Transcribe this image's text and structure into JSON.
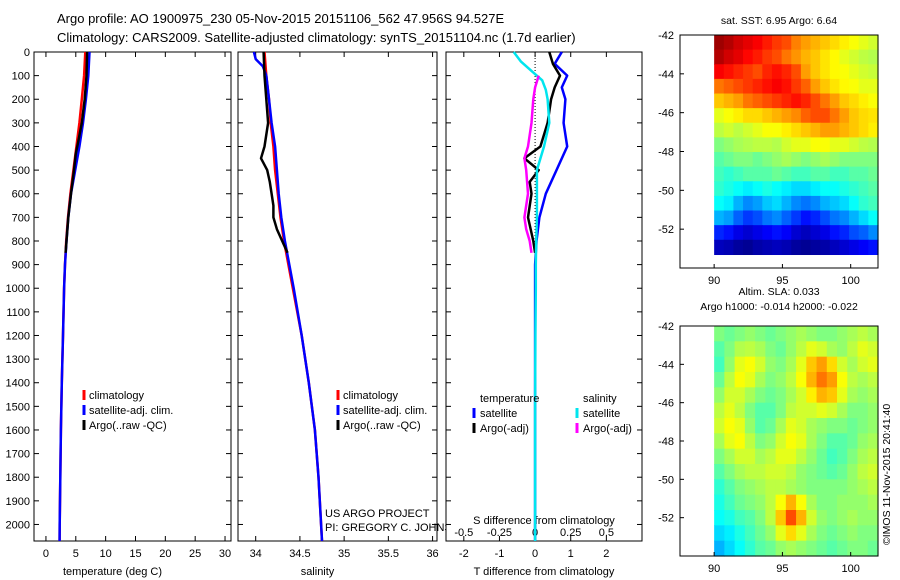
{
  "title": {
    "line1": "Argo profile: AO 1900975_230 05-Nov-2015 20151106_562 47.956S 94.527E",
    "line2": "Climatology: CARS2009. Satellite-adjusted climatology: synTS_20151104.nc (1.7d earlier)"
  },
  "side_label": "©IMOS 11-Nov-2015 20:41:40",
  "chart_data": [
    {
      "id": "temperature",
      "type": "line",
      "xlabel": "temperature (deg C)",
      "ylabel": "",
      "xlim": [
        -2,
        31
      ],
      "ylim": [
        2070,
        0
      ],
      "x_ticks": [
        0,
        5,
        10,
        15,
        20,
        25,
        30
      ],
      "x_tick_labels": [
        "0",
        "5",
        "10",
        "15",
        "20",
        "25",
        "30"
      ],
      "y_ticks": [
        0,
        100,
        200,
        300,
        400,
        500,
        600,
        700,
        800,
        900,
        1000,
        1100,
        1200,
        1300,
        1400,
        1500,
        1600,
        1700,
        1800,
        1900,
        2000
      ],
      "y_tick_labels": [
        "0",
        "100",
        "200",
        "300",
        "400",
        "500",
        "600",
        "700",
        "800",
        "900",
        "1000",
        "1100",
        "1200",
        "1300",
        "1400",
        "1500",
        "1600",
        "1700",
        "1800",
        "1900",
        "2000"
      ],
      "legend": [
        "climatology",
        "satellite-adj. clim.",
        "Argo(..raw -QC)"
      ],
      "series": [
        {
          "name": "climatology",
          "color": "#ff0000",
          "y": [
            0,
            100,
            200,
            300,
            400,
            500,
            600,
            700,
            800,
            900,
            1000,
            1200,
            1400,
            1600,
            1800,
            2000,
            2070
          ],
          "x": [
            6.6,
            6.4,
            6.0,
            5.6,
            5.1,
            4.6,
            4.1,
            3.7,
            3.4,
            3.2,
            3.05,
            2.85,
            2.65,
            2.5,
            2.4,
            2.3,
            2.28
          ]
        },
        {
          "name": "satellite-adj. clim.",
          "color": "#0000ff",
          "y": [
            0,
            100,
            200,
            300,
            400,
            500,
            600,
            700,
            800,
            900,
            1000,
            1200,
            1400,
            1600,
            1800,
            2000,
            2070
          ],
          "x": [
            7.3,
            7.1,
            6.7,
            6.2,
            5.6,
            4.9,
            4.2,
            3.75,
            3.45,
            3.2,
            3.05,
            2.85,
            2.65,
            2.5,
            2.4,
            2.3,
            2.28
          ]
        },
        {
          "name": "Argo(..raw -QC)",
          "color": "#000000",
          "y": [
            0,
            100,
            200,
            300,
            380,
            430,
            500,
            600,
            700,
            800,
            850
          ],
          "x": [
            6.9,
            6.8,
            6.5,
            6.0,
            5.4,
            5.0,
            4.7,
            4.2,
            3.75,
            3.45,
            3.3
          ]
        }
      ]
    },
    {
      "id": "salinity",
      "type": "line",
      "xlabel": "salinity",
      "ylabel": "",
      "xlim": [
        33.8,
        36.05
      ],
      "ylim": [
        2070,
        0
      ],
      "x_ticks": [
        34,
        34.5,
        35,
        35.5,
        36
      ],
      "x_tick_labels": [
        "34",
        "34.5",
        "35",
        "35.5",
        "36"
      ],
      "legend": [
        "climatology",
        "satellite-adj. clim.",
        "Argo(..raw -QC)"
      ],
      "annotation": [
        "US ARGO PROJECT",
        "PI: GREGORY C. JOHNSON"
      ],
      "series": [
        {
          "name": "climatology",
          "color": "#ff0000",
          "y": [
            0,
            100,
            200,
            300,
            400,
            500,
            600,
            700,
            800,
            900,
            1000,
            1200,
            1400,
            1600,
            1800,
            2000,
            2070
          ],
          "x": [
            34.1,
            34.12,
            34.15,
            34.17,
            34.2,
            34.22,
            34.25,
            34.28,
            34.32,
            34.37,
            34.42,
            34.52,
            34.6,
            34.67,
            34.71,
            34.74,
            34.75
          ]
        },
        {
          "name": "satellite-adj. clim.",
          "color": "#0000ff",
          "y": [
            0,
            30,
            60,
            100,
            200,
            300,
            400,
            500,
            600,
            700,
            800,
            900,
            1000,
            1200,
            1400,
            1600,
            1800,
            2000,
            2070
          ],
          "x": [
            33.98,
            34.0,
            34.08,
            34.12,
            34.15,
            34.18,
            34.22,
            34.24,
            34.26,
            34.29,
            34.33,
            34.38,
            34.43,
            34.52,
            34.6,
            34.67,
            34.71,
            34.74,
            34.75
          ]
        },
        {
          "name": "Argo(..raw -QC)",
          "color": "#000000",
          "y": [
            0,
            100,
            200,
            300,
            400,
            450,
            500,
            550,
            600,
            650,
            700,
            750,
            800,
            850
          ],
          "x": [
            34.09,
            34.1,
            34.12,
            34.14,
            34.1,
            34.06,
            34.13,
            34.16,
            34.18,
            34.2,
            34.2,
            34.24,
            34.3,
            34.36
          ]
        }
      ]
    },
    {
      "id": "difference",
      "type": "line",
      "xlabel": "T difference from climatology",
      "xlabel_top": "S difference from climatology",
      "ylabel": "",
      "xlim": [
        -2.5,
        3.0
      ],
      "ylim": [
        2070,
        0
      ],
      "x_ticks": [
        -2,
        -1,
        0,
        1,
        2
      ],
      "x_tick_labels": [
        "-2",
        "-1",
        "0",
        "1",
        "2"
      ],
      "x2_tick_labels": [
        "-0.5",
        "-0.25",
        "0",
        "0.25",
        "0.5"
      ],
      "legend_headers": [
        "temperature",
        "salinity"
      ],
      "legend": [
        "satellite",
        "Argo(-adj)",
        "satellite",
        "Argo(-adj)"
      ],
      "series": [
        {
          "name": "temperature satellite",
          "color": "#0000ff",
          "y": [
            0,
            50,
            100,
            150,
            200,
            300,
            400,
            500,
            600,
            700,
            800,
            900,
            1000,
            2070
          ],
          "x": [
            0.75,
            0.55,
            0.9,
            0.75,
            0.85,
            0.8,
            0.9,
            0.6,
            0.3,
            0.12,
            0.04,
            0.0,
            0.0,
            0.0
          ]
        },
        {
          "name": "temperature Argo(-adj)",
          "color": "#000000",
          "y": [
            0,
            50,
            100,
            150,
            200,
            300,
            400,
            450,
            500,
            550,
            600,
            700,
            800,
            850
          ],
          "x": [
            0.4,
            0.5,
            0.7,
            0.55,
            0.45,
            0.35,
            0.15,
            -0.3,
            0.1,
            -0.15,
            -0.1,
            -0.2,
            -0.05,
            0.0
          ]
        },
        {
          "name": "salinity satellite",
          "color": "#00e5ee",
          "y": [
            0,
            40,
            80,
            120,
            160,
            200,
            300,
            400,
            500,
            600,
            700,
            800,
            900,
            1000,
            1200,
            1500,
            2070
          ],
          "x": [
            -0.6,
            -0.4,
            -0.1,
            0.2,
            0.3,
            0.35,
            0.4,
            0.25,
            0.05,
            0.05,
            0.05,
            0.03,
            0.02,
            0.02,
            0.01,
            0.0,
            0.0
          ]
        },
        {
          "name": "salinity Argo(-adj)",
          "color": "#ff00ff",
          "y": [
            100,
            150,
            200,
            300,
            400,
            450,
            500,
            600,
            700,
            750,
            800,
            850
          ],
          "x": [
            0.1,
            0.0,
            -0.05,
            -0.1,
            -0.2,
            -0.3,
            -0.25,
            -0.2,
            -0.3,
            -0.25,
            -0.15,
            -0.1
          ]
        }
      ]
    },
    {
      "id": "sst_map",
      "type": "heatmap",
      "title": "sat. SST: 6.95 Argo: 6.64",
      "xlim": [
        87.5,
        102
      ],
      "ylim": [
        -54,
        -42
      ],
      "x_ticks": [
        90,
        95,
        100
      ],
      "x_tick_labels": [
        "90",
        "95",
        "100"
      ],
      "y_ticks": [
        -42,
        -44,
        -46,
        -48,
        -50,
        -52
      ],
      "y_tick_labels": [
        "-42",
        "-44",
        "-46",
        "-48",
        "-50",
        "-52"
      ],
      "data_lon": [
        90,
        102
      ],
      "data_lat": [
        -53.3,
        -42
      ],
      "rows_north_to_south": [
        [
          0.97,
          0.95,
          0.92,
          0.9,
          0.88,
          0.85,
          0.82,
          0.8,
          0.75,
          0.72,
          0.7,
          0.68,
          0.66,
          0.64,
          0.62,
          0.6,
          0.58
        ],
        [
          0.95,
          0.92,
          0.9,
          0.87,
          0.85,
          0.82,
          0.8,
          0.76,
          0.73,
          0.7,
          0.68,
          0.65,
          0.63,
          0.6,
          0.58,
          0.56,
          0.55
        ],
        [
          0.88,
          0.86,
          0.84,
          0.82,
          0.8,
          0.84,
          0.86,
          0.84,
          0.8,
          0.72,
          0.68,
          0.65,
          0.63,
          0.62,
          0.6,
          0.58,
          0.57
        ],
        [
          0.76,
          0.78,
          0.8,
          0.82,
          0.84,
          0.86,
          0.88,
          0.86,
          0.82,
          0.78,
          0.72,
          0.68,
          0.65,
          0.63,
          0.62,
          0.6,
          0.6
        ],
        [
          0.68,
          0.7,
          0.72,
          0.76,
          0.78,
          0.8,
          0.82,
          0.84,
          0.86,
          0.84,
          0.8,
          0.76,
          0.72,
          0.68,
          0.66,
          0.64,
          0.62
        ],
        [
          0.6,
          0.62,
          0.64,
          0.66,
          0.66,
          0.68,
          0.7,
          0.72,
          0.74,
          0.78,
          0.8,
          0.8,
          0.76,
          0.72,
          0.68,
          0.66,
          0.65
        ],
        [
          0.56,
          0.58,
          0.56,
          0.58,
          0.6,
          0.62,
          0.62,
          0.64,
          0.66,
          0.68,
          0.7,
          0.72,
          0.72,
          0.7,
          0.68,
          0.66,
          0.64
        ],
        [
          0.5,
          0.52,
          0.54,
          0.55,
          0.56,
          0.56,
          0.55,
          0.58,
          0.6,
          0.6,
          0.62,
          0.62,
          0.6,
          0.6,
          0.58,
          0.56,
          0.55
        ],
        [
          0.46,
          0.48,
          0.5,
          0.5,
          0.48,
          0.5,
          0.52,
          0.54,
          0.52,
          0.5,
          0.52,
          0.54,
          0.52,
          0.5,
          0.5,
          0.5,
          0.5
        ],
        [
          0.44,
          0.42,
          0.44,
          0.46,
          0.46,
          0.46,
          0.48,
          0.46,
          0.44,
          0.44,
          0.46,
          0.46,
          0.44,
          0.44,
          0.46,
          0.46,
          0.48
        ],
        [
          0.42,
          0.4,
          0.38,
          0.36,
          0.38,
          0.4,
          0.38,
          0.36,
          0.34,
          0.34,
          0.36,
          0.38,
          0.38,
          0.4,
          0.42,
          0.44,
          0.46
        ],
        [
          0.38,
          0.36,
          0.3,
          0.26,
          0.28,
          0.32,
          0.34,
          0.3,
          0.26,
          0.24,
          0.26,
          0.3,
          0.32,
          0.34,
          0.38,
          0.42,
          0.44
        ],
        [
          0.3,
          0.28,
          0.22,
          0.18,
          0.2,
          0.24,
          0.26,
          0.22,
          0.18,
          0.14,
          0.16,
          0.2,
          0.24,
          0.26,
          0.3,
          0.34,
          0.38
        ],
        [
          0.16,
          0.14,
          0.1,
          0.08,
          0.1,
          0.12,
          0.14,
          0.12,
          0.08,
          0.06,
          0.08,
          0.1,
          0.14,
          0.16,
          0.2,
          0.22,
          0.26
        ],
        [
          0.06,
          0.05,
          0.03,
          0.02,
          0.04,
          0.05,
          0.06,
          0.05,
          0.03,
          0.02,
          0.03,
          0.04,
          0.06,
          0.08,
          0.1,
          0.12,
          0.14
        ]
      ]
    },
    {
      "id": "sla_map",
      "type": "heatmap",
      "title": "Altim. SLA: 0.033",
      "subtitle": "Argo h1000: -0.014 h2000: -0.022",
      "xlim": [
        87.5,
        102
      ],
      "ylim": [
        -54,
        -42
      ],
      "x_ticks": [
        90,
        95,
        100
      ],
      "x_tick_labels": [
        "90",
        "95",
        "100"
      ],
      "y_ticks": [
        -42,
        -44,
        -46,
        -48,
        -50,
        -52
      ],
      "y_tick_labels": [
        "-42",
        "-44",
        "-46",
        "-48",
        "-50",
        "-52"
      ],
      "data_lon": [
        90,
        102
      ],
      "data_lat": [
        -54,
        -42
      ],
      "rows_north_to_south": [
        [
          0.5,
          0.48,
          0.5,
          0.52,
          0.5,
          0.48,
          0.5,
          0.52,
          0.54,
          0.52,
          0.5,
          0.5,
          0.52,
          0.54,
          0.56,
          0.54
        ],
        [
          0.46,
          0.5,
          0.55,
          0.56,
          0.54,
          0.5,
          0.48,
          0.52,
          0.56,
          0.6,
          0.58,
          0.54,
          0.52,
          0.56,
          0.6,
          0.58
        ],
        [
          0.44,
          0.52,
          0.6,
          0.62,
          0.58,
          0.52,
          0.5,
          0.54,
          0.6,
          0.68,
          0.72,
          0.66,
          0.58,
          0.54,
          0.58,
          0.6
        ],
        [
          0.48,
          0.56,
          0.62,
          0.6,
          0.54,
          0.5,
          0.52,
          0.56,
          0.62,
          0.7,
          0.76,
          0.72,
          0.62,
          0.56,
          0.54,
          0.56
        ],
        [
          0.52,
          0.58,
          0.58,
          0.54,
          0.5,
          0.48,
          0.5,
          0.54,
          0.58,
          0.64,
          0.7,
          0.68,
          0.6,
          0.54,
          0.52,
          0.54
        ],
        [
          0.56,
          0.6,
          0.56,
          0.5,
          0.46,
          0.46,
          0.5,
          0.56,
          0.58,
          0.58,
          0.6,
          0.58,
          0.54,
          0.5,
          0.5,
          0.52
        ],
        [
          0.58,
          0.62,
          0.6,
          0.52,
          0.46,
          0.48,
          0.54,
          0.6,
          0.58,
          0.54,
          0.52,
          0.5,
          0.5,
          0.48,
          0.5,
          0.52
        ],
        [
          0.54,
          0.6,
          0.62,
          0.56,
          0.5,
          0.52,
          0.58,
          0.62,
          0.6,
          0.54,
          0.5,
          0.46,
          0.46,
          0.48,
          0.52,
          0.54
        ],
        [
          0.5,
          0.54,
          0.58,
          0.58,
          0.54,
          0.56,
          0.6,
          0.6,
          0.56,
          0.52,
          0.48,
          0.44,
          0.46,
          0.5,
          0.54,
          0.56
        ],
        [
          0.46,
          0.5,
          0.54,
          0.56,
          0.56,
          0.58,
          0.58,
          0.56,
          0.52,
          0.5,
          0.48,
          0.46,
          0.48,
          0.52,
          0.56,
          0.58
        ],
        [
          0.42,
          0.46,
          0.5,
          0.52,
          0.54,
          0.56,
          0.56,
          0.54,
          0.52,
          0.5,
          0.5,
          0.5,
          0.5,
          0.52,
          0.54,
          0.56
        ],
        [
          0.4,
          0.44,
          0.48,
          0.5,
          0.52,
          0.56,
          0.62,
          0.7,
          0.62,
          0.54,
          0.5,
          0.5,
          0.52,
          0.52,
          0.52,
          0.54
        ],
        [
          0.38,
          0.4,
          0.44,
          0.46,
          0.5,
          0.56,
          0.68,
          0.8,
          0.7,
          0.58,
          0.52,
          0.5,
          0.52,
          0.54,
          0.52,
          0.52
        ],
        [
          0.34,
          0.36,
          0.4,
          0.44,
          0.48,
          0.52,
          0.6,
          0.66,
          0.6,
          0.54,
          0.5,
          0.48,
          0.5,
          0.52,
          0.5,
          0.5
        ],
        [
          0.3,
          0.34,
          0.38,
          0.42,
          0.46,
          0.48,
          0.52,
          0.54,
          0.52,
          0.5,
          0.48,
          0.46,
          0.48,
          0.5,
          0.5,
          0.48
        ]
      ]
    }
  ]
}
